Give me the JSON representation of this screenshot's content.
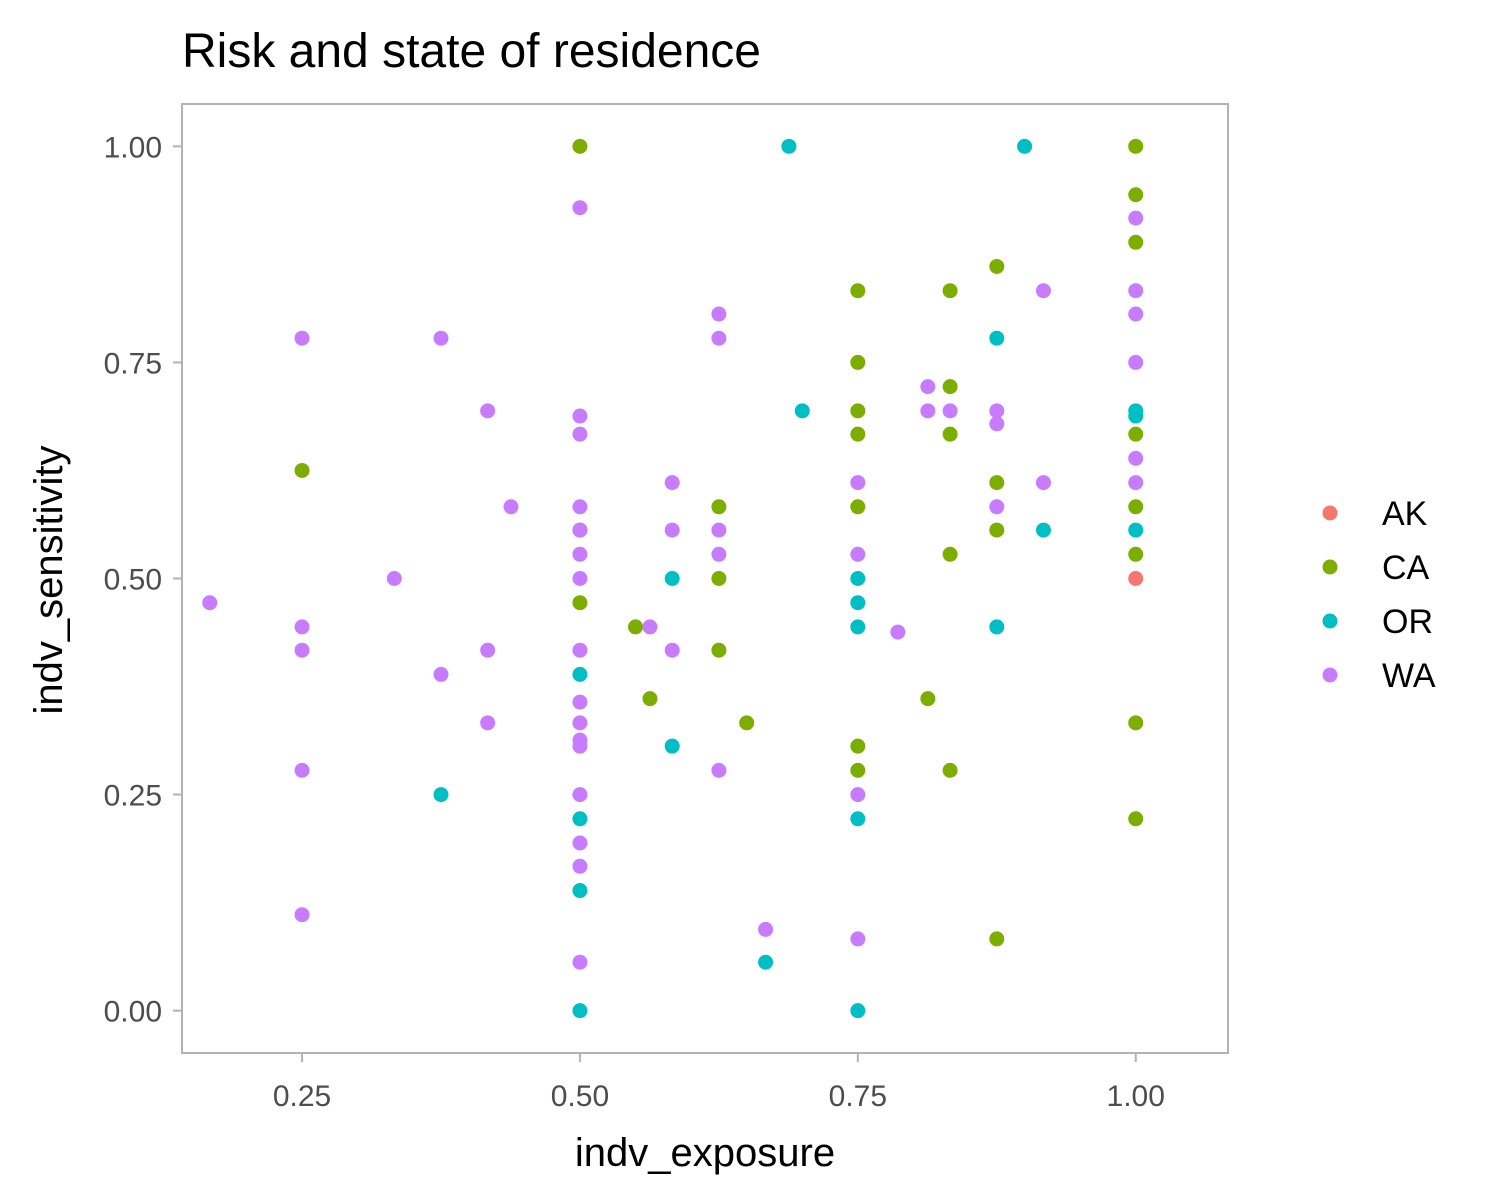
{
  "chart_data": {
    "type": "scatter",
    "title": "Risk and state of residence",
    "xlabel": "indv_exposure",
    "ylabel": "indv_sensitivity",
    "xlim": [
      0.142,
      1.083
    ],
    "ylim": [
      -0.049,
      1.049
    ],
    "xticks": [
      "0.25",
      "0.50",
      "0.75",
      "1.00"
    ],
    "yticks": [
      "0.00",
      "0.25",
      "0.50",
      "0.75",
      "1.00"
    ],
    "grid": false,
    "legend_position": "right",
    "series": [
      {
        "name": "AK",
        "color": "#F8766D",
        "points": [
          [
            1.0,
            0.5
          ]
        ]
      },
      {
        "name": "CA",
        "color": "#7CAE00",
        "points": [
          [
            0.25,
            0.625
          ],
          [
            0.5,
            1.0
          ],
          [
            0.5,
            0.556
          ],
          [
            0.5,
            0.472
          ],
          [
            0.55,
            0.444
          ],
          [
            0.563,
            0.361
          ],
          [
            0.625,
            0.583
          ],
          [
            0.625,
            0.5
          ],
          [
            0.625,
            0.417
          ],
          [
            0.65,
            0.333
          ],
          [
            0.75,
            0.833
          ],
          [
            0.75,
            0.75
          ],
          [
            0.75,
            0.694
          ],
          [
            0.75,
            0.667
          ],
          [
            0.75,
            0.583
          ],
          [
            0.75,
            0.306
          ],
          [
            0.75,
            0.278
          ],
          [
            0.813,
            0.361
          ],
          [
            0.833,
            0.833
          ],
          [
            0.833,
            0.722
          ],
          [
            0.833,
            0.667
          ],
          [
            0.833,
            0.528
          ],
          [
            0.833,
            0.278
          ],
          [
            0.875,
            0.861
          ],
          [
            0.875,
            0.611
          ],
          [
            0.875,
            0.556
          ],
          [
            0.875,
            0.083
          ],
          [
            1.0,
            1.0
          ],
          [
            1.0,
            0.944
          ],
          [
            1.0,
            0.889
          ],
          [
            1.0,
            0.667
          ],
          [
            1.0,
            0.583
          ],
          [
            1.0,
            0.528
          ],
          [
            1.0,
            0.333
          ],
          [
            1.0,
            0.222
          ]
        ]
      },
      {
        "name": "OR",
        "color": "#00BFC4",
        "points": [
          [
            0.375,
            0.25
          ],
          [
            0.5,
            0.389
          ],
          [
            0.5,
            0.222
          ],
          [
            0.5,
            0.139
          ],
          [
            0.5,
            0.0
          ],
          [
            0.583,
            0.5
          ],
          [
            0.583,
            0.306
          ],
          [
            0.667,
            0.056
          ],
          [
            0.688,
            1.0
          ],
          [
            0.7,
            0.694
          ],
          [
            0.75,
            0.5
          ],
          [
            0.75,
            0.472
          ],
          [
            0.75,
            0.444
          ],
          [
            0.75,
            0.222
          ],
          [
            0.75,
            0.0
          ],
          [
            0.875,
            0.778
          ],
          [
            0.875,
            0.444
          ],
          [
            0.9,
            1.0
          ],
          [
            0.917,
            0.556
          ],
          [
            1.0,
            0.694
          ],
          [
            1.0,
            0.688
          ],
          [
            1.0,
            0.556
          ]
        ]
      },
      {
        "name": "WA",
        "color": "#C77CFF",
        "points": [
          [
            0.167,
            0.472
          ],
          [
            0.25,
            0.778
          ],
          [
            0.25,
            0.444
          ],
          [
            0.25,
            0.417
          ],
          [
            0.25,
            0.278
          ],
          [
            0.25,
            0.111
          ],
          [
            0.333,
            0.5
          ],
          [
            0.375,
            0.778
          ],
          [
            0.375,
            0.389
          ],
          [
            0.417,
            0.694
          ],
          [
            0.417,
            0.417
          ],
          [
            0.417,
            0.333
          ],
          [
            0.438,
            0.583
          ],
          [
            0.5,
            0.929
          ],
          [
            0.5,
            0.688
          ],
          [
            0.5,
            0.667
          ],
          [
            0.5,
            0.583
          ],
          [
            0.5,
            0.556
          ],
          [
            0.5,
            0.528
          ],
          [
            0.5,
            0.5
          ],
          [
            0.5,
            0.417
          ],
          [
            0.5,
            0.357
          ],
          [
            0.5,
            0.333
          ],
          [
            0.5,
            0.313
          ],
          [
            0.5,
            0.306
          ],
          [
            0.5,
            0.25
          ],
          [
            0.5,
            0.194
          ],
          [
            0.5,
            0.167
          ],
          [
            0.5,
            0.056
          ],
          [
            0.563,
            0.444
          ],
          [
            0.583,
            0.611
          ],
          [
            0.583,
            0.556
          ],
          [
            0.583,
            0.417
          ],
          [
            0.625,
            0.806
          ],
          [
            0.625,
            0.778
          ],
          [
            0.625,
            0.556
          ],
          [
            0.625,
            0.528
          ],
          [
            0.625,
            0.278
          ],
          [
            0.667,
            0.094
          ],
          [
            0.75,
            0.611
          ],
          [
            0.75,
            0.528
          ],
          [
            0.75,
            0.25
          ],
          [
            0.75,
            0.083
          ],
          [
            0.786,
            0.438
          ],
          [
            0.813,
            0.722
          ],
          [
            0.813,
            0.694
          ],
          [
            0.833,
            0.694
          ],
          [
            0.875,
            0.694
          ],
          [
            0.875,
            0.679
          ],
          [
            0.875,
            0.583
          ],
          [
            0.917,
            0.833
          ],
          [
            0.917,
            0.611
          ],
          [
            1.0,
            0.917
          ],
          [
            1.0,
            0.833
          ],
          [
            1.0,
            0.806
          ],
          [
            1.0,
            0.75
          ],
          [
            1.0,
            0.639
          ],
          [
            1.0,
            0.611
          ]
        ]
      }
    ]
  }
}
